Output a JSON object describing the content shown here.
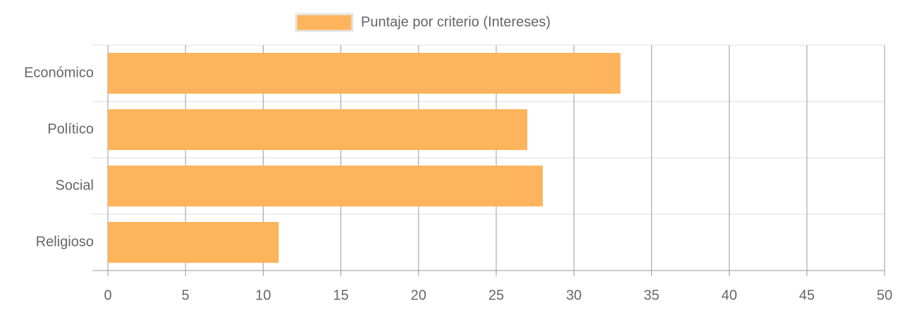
{
  "chart_data": {
    "type": "bar",
    "orientation": "horizontal",
    "categories": [
      "Económico",
      "Político",
      "Social",
      "Religioso"
    ],
    "series": [
      {
        "name": "Puntaje por criterio (Intereses)",
        "color": "#fdb45c",
        "values": [
          33,
          27,
          28,
          11
        ]
      }
    ],
    "xlim": [
      0,
      50
    ],
    "xticks": [
      0,
      5,
      10,
      15,
      20,
      25,
      30,
      35,
      40,
      45,
      50
    ],
    "grid": true,
    "legend": "top"
  }
}
